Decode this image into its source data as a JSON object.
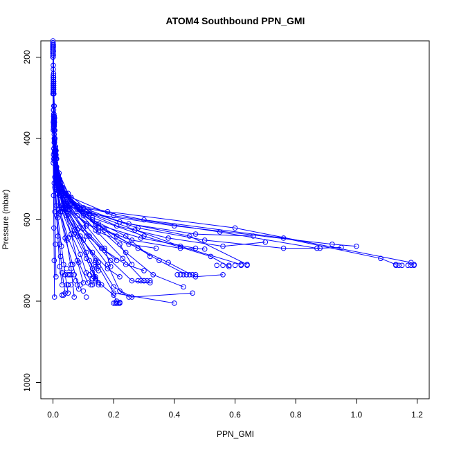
{
  "chart_data": {
    "type": "line",
    "title": "ATOM4 Southbound PPN_GMI",
    "xlabel": "PPN_GMI",
    "ylabel": "Pressure (mbar)",
    "xlim": [
      -0.04,
      1.24
    ],
    "ylim": [
      1040,
      160
    ],
    "x_ticks": [
      "0.0",
      "0.2",
      "0.4",
      "0.6",
      "0.8",
      "1.0",
      "1.2"
    ],
    "y_ticks": [
      "200",
      "400",
      "600",
      "800",
      "1000"
    ],
    "x_tick_values": [
      0,
      0.2,
      0.4,
      0.6,
      0.8,
      1.0,
      1.2
    ],
    "y_tick_values": [
      200,
      400,
      600,
      800,
      1000
    ],
    "y_reversed": true,
    "grid": false,
    "marker": "open-circle",
    "series_color": "#0000ff",
    "series": [
      {
        "x": [
          0.0,
          0.001,
          0.002,
          0.003,
          0.004,
          0.006,
          0.01,
          0.02,
          0.05,
          0.12,
          0.4,
          0.92,
          1.0
        ],
        "y": [
          160,
          220,
          280,
          340,
          400,
          450,
          500,
          540,
          565,
          585,
          615,
          660,
          665
        ]
      },
      {
        "x": [
          0.001,
          0.002,
          0.003,
          0.004,
          0.006,
          0.01,
          0.02,
          0.06,
          0.18,
          0.6,
          1.18,
          1.19
        ],
        "y": [
          170,
          250,
          320,
          390,
          440,
          490,
          530,
          560,
          580,
          620,
          705,
          710
        ]
      },
      {
        "x": [
          0.0,
          0.002,
          0.003,
          0.005,
          0.008,
          0.015,
          0.04,
          0.1,
          0.3,
          0.76,
          1.08,
          1.13
        ],
        "y": [
          180,
          260,
          340,
          410,
          460,
          505,
          540,
          570,
          600,
          645,
          695,
          710
        ]
      },
      {
        "x": [
          0.001,
          0.002,
          0.004,
          0.006,
          0.01,
          0.02,
          0.06,
          0.2,
          0.55,
          0.87,
          0.95
        ],
        "y": [
          175,
          240,
          320,
          400,
          450,
          500,
          545,
          590,
          630,
          670,
          668
        ]
      },
      {
        "x": [
          0.0,
          0.002,
          0.004,
          0.007,
          0.012,
          0.03,
          0.09,
          0.25,
          0.47,
          0.66
        ],
        "y": [
          190,
          270,
          360,
          430,
          480,
          530,
          575,
          610,
          635,
          640
        ]
      },
      {
        "x": [
          0.0,
          0.001,
          0.003,
          0.006,
          0.012,
          0.03,
          0.08,
          0.22,
          0.45,
          0.64
        ],
        "y": [
          165,
          230,
          320,
          400,
          470,
          520,
          565,
          605,
          640,
          710
        ]
      },
      {
        "x": [
          0.001,
          0.002,
          0.004,
          0.008,
          0.015,
          0.04,
          0.11,
          0.27,
          0.42,
          0.62
        ],
        "y": [
          185,
          265,
          345,
          425,
          485,
          535,
          580,
          625,
          665,
          710
        ]
      },
      {
        "x": [
          0.0,
          0.002,
          0.004,
          0.008,
          0.018,
          0.05,
          0.13,
          0.3,
          0.52,
          0.58
        ],
        "y": [
          200,
          280,
          370,
          440,
          500,
          550,
          595,
          640,
          690,
          715
        ]
      },
      {
        "x": [
          0.0,
          0.001,
          0.003,
          0.006,
          0.014,
          0.04,
          0.1,
          0.21,
          0.35,
          0.44
        ],
        "y": [
          175,
          250,
          340,
          420,
          485,
          540,
          590,
          640,
          700,
          735
        ]
      },
      {
        "x": [
          0.001,
          0.003,
          0.006,
          0.012,
          0.03,
          0.08,
          0.17,
          0.28,
          0.38,
          0.47,
          0.56
        ],
        "y": [
          195,
          290,
          380,
          450,
          520,
          575,
          625,
          670,
          705,
          740,
          735
        ]
      },
      {
        "x": [
          0.0,
          0.002,
          0.005,
          0.01,
          0.025,
          0.07,
          0.15,
          0.24,
          0.33,
          0.43
        ],
        "y": [
          180,
          270,
          360,
          440,
          510,
          565,
          620,
          680,
          735,
          765
        ]
      },
      {
        "x": [
          0.0,
          0.002,
          0.005,
          0.01,
          0.022,
          0.06,
          0.14,
          0.23,
          0.3
        ],
        "y": [
          170,
          260,
          350,
          430,
          500,
          560,
          625,
          695,
          750
        ]
      },
      {
        "x": [
          0.0,
          0.001,
          0.003,
          0.007,
          0.018,
          0.05,
          0.12,
          0.19,
          0.26,
          0.32
        ],
        "y": [
          190,
          280,
          370,
          445,
          515,
          575,
          640,
          700,
          750,
          755
        ]
      },
      {
        "x": [
          0.0,
          0.002,
          0.004,
          0.009,
          0.02,
          0.055,
          0.11,
          0.18,
          0.22,
          0.25
        ],
        "y": [
          185,
          275,
          365,
          445,
          515,
          575,
          640,
          710,
          775,
          790
        ]
      },
      {
        "x": [
          0.0,
          0.001,
          0.003,
          0.006,
          0.015,
          0.04,
          0.09,
          0.15,
          0.2,
          0.26,
          0.46
        ],
        "y": [
          175,
          265,
          355,
          435,
          505,
          570,
          640,
          705,
          765,
          790,
          780
        ]
      },
      {
        "x": [
          0.0,
          0.002,
          0.004,
          0.008,
          0.018,
          0.045,
          0.1,
          0.15,
          0.2,
          0.4
        ],
        "y": [
          200,
          290,
          380,
          460,
          530,
          590,
          650,
          715,
          780,
          805
        ]
      },
      {
        "x": [
          0.0,
          0.001,
          0.003,
          0.007,
          0.016,
          0.04,
          0.08,
          0.12,
          0.14,
          0.16,
          0.2,
          0.21,
          0.22
        ],
        "y": [
          180,
          270,
          360,
          440,
          510,
          575,
          640,
          700,
          740,
          760,
          785,
          800,
          803
        ]
      },
      {
        "x": [
          0.0,
          0.002,
          0.005,
          0.01,
          0.02,
          0.045,
          0.08,
          0.11,
          0.13,
          0.14,
          0.15
        ],
        "y": [
          170,
          260,
          350,
          430,
          500,
          565,
          625,
          680,
          720,
          745,
          760
        ]
      },
      {
        "x": [
          0.0,
          0.001,
          0.003,
          0.006,
          0.012,
          0.03,
          0.06,
          0.09,
          0.11,
          0.13
        ],
        "y": [
          190,
          280,
          370,
          450,
          520,
          580,
          635,
          685,
          730,
          760
        ]
      },
      {
        "x": [
          0.0,
          0.002,
          0.004,
          0.008,
          0.015,
          0.035,
          0.06,
          0.08,
          0.1
        ],
        "y": [
          175,
          265,
          355,
          435,
          505,
          570,
          635,
          700,
          755
        ]
      },
      {
        "x": [
          0.0,
          0.001,
          0.003,
          0.006,
          0.012,
          0.025,
          0.045,
          0.06,
          0.07
        ],
        "y": [
          185,
          275,
          365,
          445,
          515,
          580,
          650,
          720,
          790
        ]
      },
      {
        "x": [
          0.0,
          0.001,
          0.002,
          0.004,
          0.008,
          0.016,
          0.028,
          0.04,
          0.05
        ],
        "y": [
          195,
          285,
          375,
          455,
          525,
          595,
          665,
          735,
          780
        ]
      },
      {
        "x": [
          0.0,
          0.001,
          0.002,
          0.003,
          0.006,
          0.01,
          0.016,
          0.022,
          0.03
        ],
        "y": [
          165,
          255,
          345,
          425,
          495,
          565,
          640,
          715,
          760
        ]
      },
      {
        "x": [
          0.0,
          0.001,
          0.001,
          0.002,
          0.004,
          0.006,
          0.008,
          0.01
        ],
        "y": [
          180,
          270,
          360,
          440,
          510,
          580,
          660,
          740
        ]
      },
      {
        "x": [
          0.0,
          0.0,
          0.001,
          0.001,
          0.002,
          0.003,
          0.004,
          0.005
        ],
        "y": [
          200,
          290,
          380,
          460,
          540,
          620,
          700,
          790
        ]
      },
      {
        "x": [
          0.0,
          0.001,
          0.002,
          0.004,
          0.01,
          0.03,
          0.08,
          0.15,
          0.25,
          0.34
        ],
        "y": [
          170,
          250,
          330,
          410,
          480,
          540,
          590,
          630,
          660,
          670
        ]
      },
      {
        "x": [
          0.001,
          0.002,
          0.004,
          0.008,
          0.018,
          0.05,
          0.13,
          0.24,
          0.32
        ],
        "y": [
          185,
          270,
          350,
          420,
          490,
          550,
          600,
          640,
          690
        ]
      },
      {
        "x": [
          0.0,
          0.002,
          0.004,
          0.009,
          0.022,
          0.06,
          0.15,
          0.22,
          0.26
        ],
        "y": [
          190,
          280,
          365,
          440,
          505,
          560,
          610,
          660,
          710
        ]
      },
      {
        "x": [
          0.0,
          0.001,
          0.003,
          0.007,
          0.017,
          0.045,
          0.11,
          0.17,
          0.19
        ],
        "y": [
          175,
          265,
          350,
          430,
          500,
          560,
          615,
          670,
          715
        ]
      },
      {
        "x": [
          0.0,
          0.002,
          0.004,
          0.008,
          0.02,
          0.05,
          0.12,
          0.28,
          0.5,
          0.76,
          0.88
        ],
        "y": [
          180,
          260,
          345,
          420,
          485,
          535,
          580,
          620,
          650,
          670,
          670
        ]
      },
      {
        "x": [
          0.0,
          0.001,
          0.003,
          0.006,
          0.016,
          0.04,
          0.11,
          0.26,
          0.42,
          0.5
        ],
        "y": [
          195,
          285,
          370,
          445,
          510,
          565,
          610,
          650,
          670,
          672
        ]
      },
      {
        "x": [
          0.0,
          0.001,
          0.003,
          0.005,
          0.012,
          0.03,
          0.07,
          0.13,
          0.18,
          0.22
        ],
        "y": [
          170,
          260,
          350,
          430,
          500,
          565,
          625,
          680,
          720,
          740
        ]
      },
      {
        "x": [
          0.0,
          0.002,
          0.004,
          0.007,
          0.014,
          0.034,
          0.07,
          0.11,
          0.14
        ],
        "y": [
          185,
          275,
          360,
          440,
          510,
          575,
          635,
          695,
          745
        ]
      },
      {
        "x": [
          0.0,
          0.001,
          0.002,
          0.004,
          0.009,
          0.02,
          0.04,
          0.065,
          0.085
        ],
        "y": [
          175,
          265,
          355,
          435,
          505,
          575,
          645,
          710,
          770
        ]
      },
      {
        "x": [
          0.0,
          0.001,
          0.002,
          0.003,
          0.006,
          0.012,
          0.022,
          0.03,
          0.04
        ],
        "y": [
          190,
          280,
          370,
          450,
          520,
          590,
          660,
          730,
          780
        ]
      },
      {
        "x": [
          0.0,
          0.001,
          0.002,
          0.005,
          0.011,
          0.03,
          0.09,
          0.21,
          0.38,
          0.56,
          0.7
        ],
        "y": [
          165,
          245,
          330,
          405,
          470,
          525,
          575,
          615,
          645,
          665,
          655
        ]
      },
      {
        "x": [
          0.0,
          0.002,
          0.004,
          0.009,
          0.02,
          0.055,
          0.14,
          0.29,
          0.47
        ],
        "y": [
          200,
          285,
          370,
          445,
          510,
          565,
          610,
          645,
          670
        ]
      },
      {
        "x": [
          0.0,
          0.001,
          0.003,
          0.006,
          0.013,
          0.035,
          0.085,
          0.16,
          0.24,
          0.3
        ],
        "y": [
          180,
          270,
          355,
          435,
          505,
          565,
          620,
          670,
          710,
          725
        ]
      },
      {
        "x": [
          0.0,
          0.002,
          0.004,
          0.008,
          0.017,
          0.044,
          0.1,
          0.17,
          0.21
        ],
        "y": [
          175,
          265,
          350,
          430,
          500,
          560,
          620,
          675,
          700
        ]
      },
      {
        "x": [
          0.0,
          0.001,
          0.002,
          0.005,
          0.01,
          0.024,
          0.05,
          0.085,
          0.115
        ],
        "y": [
          185,
          275,
          365,
          445,
          515,
          580,
          645,
          705,
          755
        ]
      }
    ],
    "scatter_points": {
      "x": [
        0.14,
        0.14,
        0.135,
        0.14,
        0.145,
        0.15,
        0.13,
        0.12,
        0.135,
        0.13,
        0.14,
        0.15,
        0.125,
        0.05,
        0.055,
        0.06,
        0.05,
        0.045,
        0.03,
        0.03,
        0.035,
        0.04,
        0.05,
        0.06,
        0.06,
        0.065,
        0.07,
        0.075,
        0.08,
        0.28,
        0.29,
        0.3,
        0.31,
        0.32,
        0.41,
        0.42,
        0.43,
        0.44,
        0.45,
        0.46,
        0.47,
        0.54,
        0.56,
        0.58,
        0.6,
        0.62,
        0.64,
        1.13,
        1.14,
        1.15,
        1.17,
        1.18,
        1.19,
        0.2,
        0.205,
        0.21,
        0.215,
        0.22,
        0.025,
        0.035,
        0.045,
        0.09,
        0.1,
        0.11
      ],
      "y": [
        700,
        705,
        710,
        715,
        720,
        725,
        730,
        735,
        740,
        745,
        750,
        755,
        760,
        735,
        735,
        735,
        760,
        760,
        785,
        785,
        785,
        735,
        760,
        760,
        710,
        710,
        735,
        750,
        760,
        750,
        750,
        750,
        750,
        750,
        735,
        735,
        735,
        735,
        735,
        735,
        735,
        712,
        712,
        712,
        712,
        712,
        712,
        712,
        712,
        712,
        712,
        712,
        712,
        805,
        805,
        805,
        805,
        805,
        690,
        710,
        720,
        760,
        775,
        790
      ]
    }
  }
}
